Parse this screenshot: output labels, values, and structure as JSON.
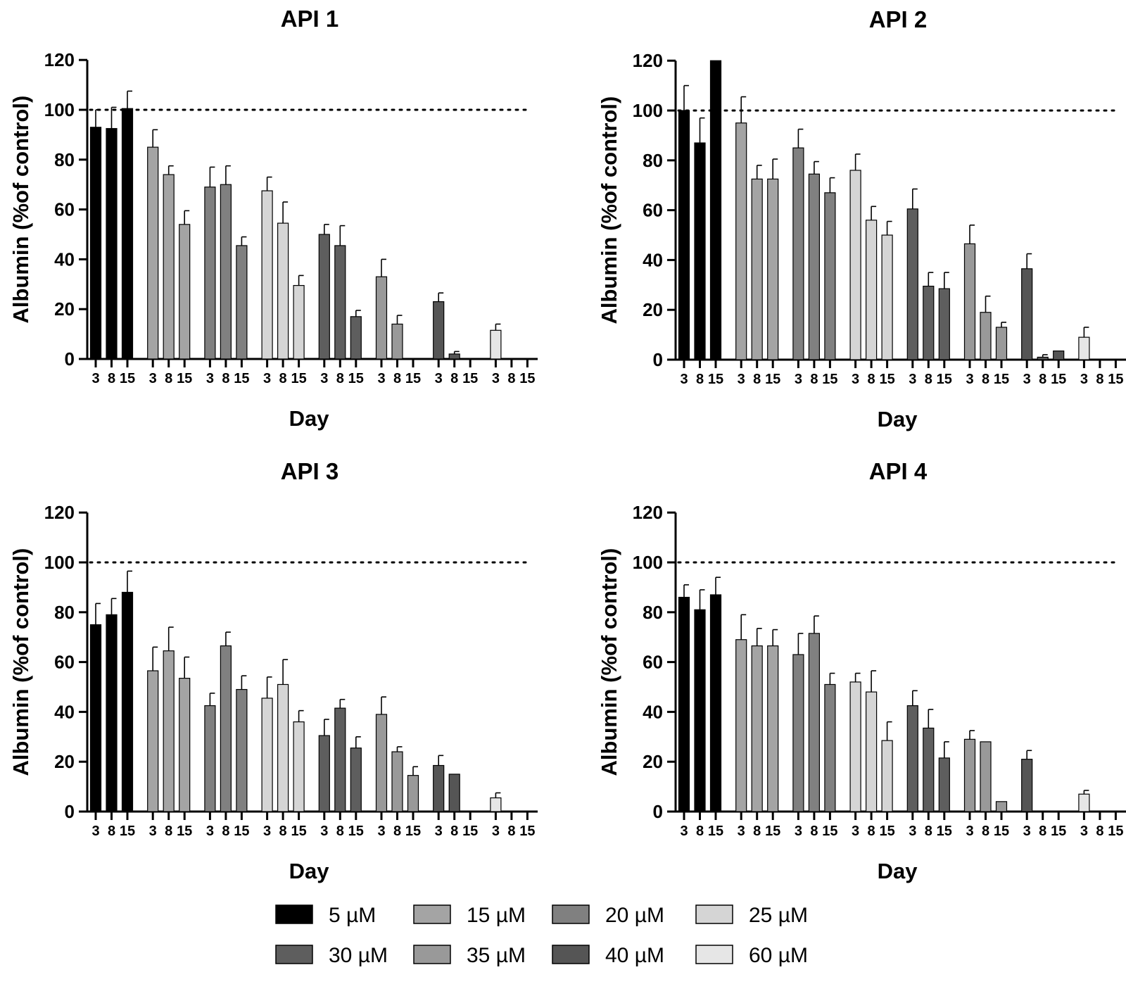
{
  "chart_data": [
    {
      "type": "bar",
      "title": "API 1",
      "xlabel": "Day",
      "ylabel": "Albumin (%of control)",
      "ylim": [
        0,
        120
      ],
      "yticks": [
        0,
        20,
        40,
        60,
        80,
        100,
        120
      ],
      "reference_line": 100,
      "categories": [
        "3",
        "8",
        "15"
      ],
      "series": [
        {
          "name": "5 µM",
          "values": [
            93,
            92.5,
            100.5
          ],
          "errors": [
            7,
            8.5,
            7
          ]
        },
        {
          "name": "15 µM",
          "values": [
            85,
            74,
            54
          ],
          "errors": [
            7,
            3.5,
            5.5
          ]
        },
        {
          "name": "20 µM",
          "values": [
            69,
            70,
            45.5
          ],
          "errors": [
            8,
            7.5,
            3.5
          ]
        },
        {
          "name": "25 µM",
          "values": [
            67.5,
            54.5,
            29.5
          ],
          "errors": [
            5.5,
            8.5,
            4
          ]
        },
        {
          "name": "30 µM",
          "values": [
            50,
            45.5,
            17
          ],
          "errors": [
            4,
            8,
            2.5
          ]
        },
        {
          "name": "35 µM",
          "values": [
            33,
            14,
            0
          ],
          "errors": [
            7,
            3.5,
            0
          ]
        },
        {
          "name": "40 µM",
          "values": [
            23,
            2,
            0
          ],
          "errors": [
            3.5,
            1,
            0
          ]
        },
        {
          "name": "60 µM",
          "values": [
            11.5,
            0,
            0
          ],
          "errors": [
            2.5,
            0,
            0
          ]
        }
      ]
    },
    {
      "type": "bar",
      "title": "API 2",
      "xlabel": "Day",
      "ylabel": "Albumin (%of control)",
      "ylim": [
        0,
        120
      ],
      "yticks": [
        0,
        20,
        40,
        60,
        80,
        100,
        120
      ],
      "reference_line": 100,
      "categories": [
        "3",
        "8",
        "15"
      ],
      "series": [
        {
          "name": "5 µM",
          "values": [
            100,
            87,
            120
          ],
          "errors": [
            10,
            10,
            0
          ]
        },
        {
          "name": "15 µM",
          "values": [
            95,
            72.5,
            72.5
          ],
          "errors": [
            10.5,
            5.5,
            8
          ]
        },
        {
          "name": "20 µM",
          "values": [
            85,
            74.5,
            67
          ],
          "errors": [
            7.5,
            5,
            6
          ]
        },
        {
          "name": "25 µM",
          "values": [
            76,
            56,
            50
          ],
          "errors": [
            6.5,
            5.5,
            5.5
          ]
        },
        {
          "name": "30 µM",
          "values": [
            60.5,
            29.5,
            28.5
          ],
          "errors": [
            8,
            5.5,
            6.5
          ]
        },
        {
          "name": "35 µM",
          "values": [
            46.5,
            19,
            13
          ],
          "errors": [
            7.5,
            6.5,
            2
          ]
        },
        {
          "name": "40 µM",
          "values": [
            36.5,
            1,
            3.5
          ],
          "errors": [
            6,
            1,
            0
          ]
        },
        {
          "name": "60 µM",
          "values": [
            9,
            0,
            0
          ],
          "errors": [
            4,
            0,
            0
          ]
        }
      ]
    },
    {
      "type": "bar",
      "title": "API 3",
      "xlabel": "Day",
      "ylabel": "Albumin (%of control)",
      "ylim": [
        0,
        120
      ],
      "yticks": [
        0,
        20,
        40,
        60,
        80,
        100,
        120
      ],
      "reference_line": 100,
      "categories": [
        "3",
        "8",
        "15"
      ],
      "series": [
        {
          "name": "5 µM",
          "values": [
            75,
            79,
            88
          ],
          "errors": [
            8.5,
            6.5,
            8.5
          ]
        },
        {
          "name": "15 µM",
          "values": [
            56.5,
            64.5,
            53.5
          ],
          "errors": [
            9.5,
            9.5,
            8.5
          ]
        },
        {
          "name": "20 µM",
          "values": [
            42.5,
            66.5,
            49
          ],
          "errors": [
            5,
            5.5,
            5.5
          ]
        },
        {
          "name": "25 µM",
          "values": [
            45.5,
            51,
            36
          ],
          "errors": [
            8.5,
            10,
            4.5
          ]
        },
        {
          "name": "30 µM",
          "values": [
            30.5,
            41.5,
            25.5
          ],
          "errors": [
            6.5,
            3.5,
            4.5
          ]
        },
        {
          "name": "35 µM",
          "values": [
            39,
            24,
            14.5
          ],
          "errors": [
            7,
            2,
            3.5
          ]
        },
        {
          "name": "40 µM",
          "values": [
            18.5,
            15,
            0
          ],
          "errors": [
            4,
            0,
            0
          ]
        },
        {
          "name": "60 µM",
          "values": [
            5.5,
            0,
            0
          ],
          "errors": [
            2,
            0,
            0
          ]
        }
      ]
    },
    {
      "type": "bar",
      "title": "API 4",
      "xlabel": "Day",
      "ylabel": "Albumin (%of control)",
      "ylim": [
        0,
        120
      ],
      "yticks": [
        0,
        20,
        40,
        60,
        80,
        100,
        120
      ],
      "reference_line": 100,
      "categories": [
        "3",
        "8",
        "15"
      ],
      "series": [
        {
          "name": "5 µM",
          "values": [
            86,
            81,
            87
          ],
          "errors": [
            5,
            8,
            7
          ]
        },
        {
          "name": "15 µM",
          "values": [
            69,
            66.5,
            66.5
          ],
          "errors": [
            10,
            7,
            6.5
          ]
        },
        {
          "name": "20 µM",
          "values": [
            63,
            71.5,
            51
          ],
          "errors": [
            8.5,
            7,
            4.5
          ]
        },
        {
          "name": "25 µM",
          "values": [
            52,
            48,
            28.5
          ],
          "errors": [
            3.5,
            8.5,
            7.5
          ]
        },
        {
          "name": "30 µM",
          "values": [
            42.5,
            33.5,
            21.5
          ],
          "errors": [
            6,
            7.5,
            6.5
          ]
        },
        {
          "name": "35 µM",
          "values": [
            29,
            28,
            4
          ],
          "errors": [
            3.5,
            0,
            0
          ]
        },
        {
          "name": "40 µM",
          "values": [
            21,
            0,
            0
          ],
          "errors": [
            3.5,
            0,
            0
          ]
        },
        {
          "name": "60 µM",
          "values": [
            7,
            0,
            0
          ],
          "errors": [
            1.5,
            0,
            0
          ]
        }
      ]
    }
  ],
  "legend": {
    "placement": "bottom",
    "items": [
      {
        "label": "5 µM",
        "color": "#000000"
      },
      {
        "label": "15 µM",
        "color": "#a4a4a4"
      },
      {
        "label": "20 µM",
        "color": "#808080"
      },
      {
        "label": "25 µM",
        "color": "#d5d5d5"
      },
      {
        "label": "30 µM",
        "color": "#5e5e5e"
      },
      {
        "label": "35 µM",
        "color": "#999999"
      },
      {
        "label": "40 µM",
        "color": "#555555"
      },
      {
        "label": "60 µM",
        "color": "#e6e6e6"
      }
    ]
  }
}
